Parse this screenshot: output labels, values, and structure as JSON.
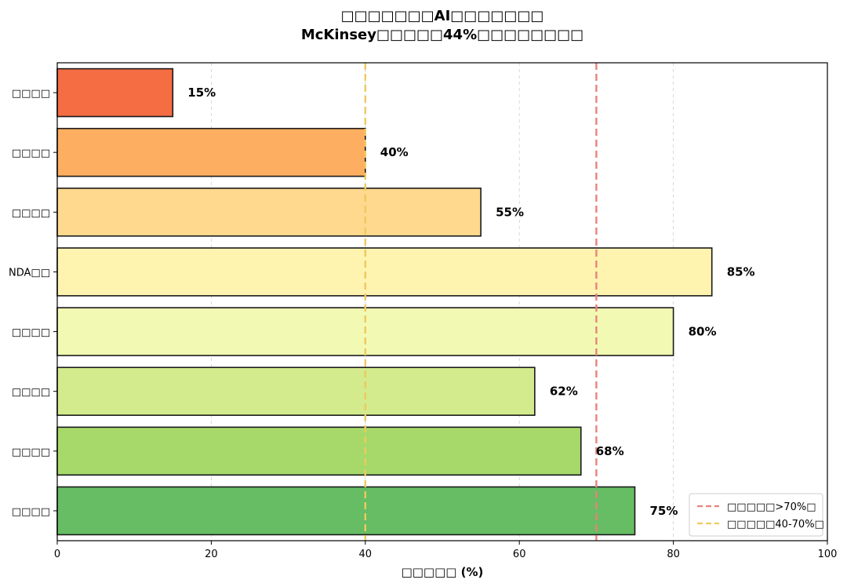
{
  "chart_data": {
    "type": "bar",
    "orientation": "horizontal",
    "title_line1": "□□□□□□□AI□□□□□□□",
    "title_line2": "McKinsey□□□□□44%□□□□□□□□",
    "xlabel": "□□□□□ (%)",
    "ylabel": "",
    "xlim": [
      0,
      100
    ],
    "xticks": [
      0,
      20,
      40,
      60,
      80,
      100
    ],
    "grid": "x-dashed",
    "categories": [
      "□□□□",
      "□□□□",
      "□□□□",
      "NDA□□",
      "□□□□",
      "□□□□",
      "□□□□",
      "□□□□"
    ],
    "values": [
      15,
      40,
      55,
      85,
      80,
      62,
      68,
      75
    ],
    "value_labels": [
      "15%",
      "40%",
      "55%",
      "85%",
      "80%",
      "62%",
      "68%",
      "75%"
    ],
    "bar_colors": [
      "#f46d43",
      "#fdae61",
      "#fed98e",
      "#fff3b0",
      "#f2f9b3",
      "#d3eb8d",
      "#a6d96a",
      "#66bd63"
    ],
    "reference_lines": [
      {
        "x": 70,
        "color": "#e8837a",
        "label": "□□□□□>70%□"
      },
      {
        "x": 40,
        "color": "#eec95e",
        "label": "□□□□□40-70%□"
      }
    ],
    "legend_position": "lower-right"
  }
}
